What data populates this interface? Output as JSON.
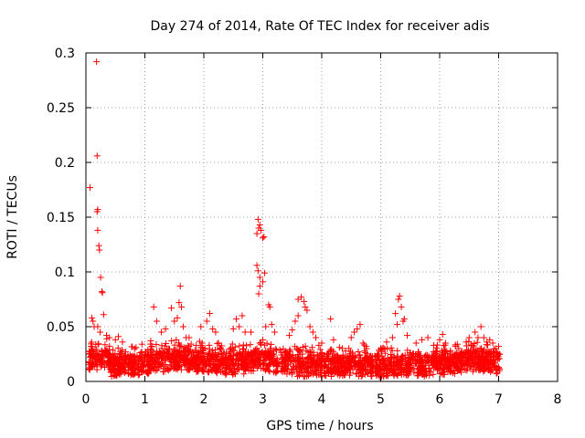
{
  "chart_data": {
    "type": "scatter",
    "title": "Day 274 of 2014, Rate Of TEC Index for receiver adis",
    "xlabel": "GPS time / hours",
    "ylabel": "ROTI / TECUs",
    "xlim": [
      0,
      8
    ],
    "ylim": [
      0,
      0.3
    ],
    "x_ticks": [
      0,
      1,
      2,
      3,
      4,
      5,
      6,
      7,
      8
    ],
    "y_ticks": [
      0,
      0.05,
      0.1,
      0.15,
      0.2,
      0.25,
      0.3
    ],
    "grid": true,
    "marker": "+",
    "color": "#ff0000",
    "series": [
      {
        "name": "ROTI",
        "points": [
          [
            0.07,
            0.177
          ],
          [
            0.18,
            0.292
          ],
          [
            0.19,
            0.206
          ],
          [
            0.2,
            0.157
          ],
          [
            0.19,
            0.155
          ],
          [
            0.2,
            0.138
          ],
          [
            0.22,
            0.124
          ],
          [
            0.23,
            0.12
          ],
          [
            0.25,
            0.095
          ],
          [
            0.27,
            0.082
          ],
          [
            0.28,
            0.081
          ],
          [
            0.3,
            0.061
          ],
          [
            0.1,
            0.058
          ],
          [
            0.12,
            0.055
          ],
          [
            0.14,
            0.05
          ],
          [
            0.2,
            0.05
          ],
          [
            0.24,
            0.045
          ],
          [
            0.35,
            0.042
          ],
          [
            0.4,
            0.04
          ],
          [
            0.5,
            0.038
          ],
          [
            0.55,
            0.041
          ],
          [
            0.62,
            0.036
          ],
          [
            0.85,
            0.031
          ],
          [
            0.95,
            0.034
          ],
          [
            1.1,
            0.037
          ],
          [
            1.15,
            0.068
          ],
          [
            1.2,
            0.055
          ],
          [
            1.28,
            0.045
          ],
          [
            1.35,
            0.048
          ],
          [
            1.45,
            0.067
          ],
          [
            1.5,
            0.055
          ],
          [
            1.55,
            0.058
          ],
          [
            1.58,
            0.072
          ],
          [
            1.6,
            0.087
          ],
          [
            1.62,
            0.068
          ],
          [
            1.65,
            0.05
          ],
          [
            1.7,
            0.04
          ],
          [
            1.75,
            0.04
          ],
          [
            1.95,
            0.05
          ],
          [
            2.05,
            0.055
          ],
          [
            2.1,
            0.062
          ],
          [
            2.15,
            0.048
          ],
          [
            2.2,
            0.045
          ],
          [
            2.25,
            0.035
          ],
          [
            2.5,
            0.048
          ],
          [
            2.55,
            0.057
          ],
          [
            2.6,
            0.05
          ],
          [
            2.65,
            0.06
          ],
          [
            2.7,
            0.045
          ],
          [
            2.8,
            0.045
          ],
          [
            2.9,
            0.135
          ],
          [
            2.92,
            0.148
          ],
          [
            2.93,
            0.14
          ],
          [
            2.95,
            0.143
          ],
          [
            2.97,
            0.138
          ],
          [
            3.0,
            0.131
          ],
          [
            3.02,
            0.132
          ],
          [
            2.9,
            0.106
          ],
          [
            2.92,
            0.101
          ],
          [
            2.95,
            0.095
          ],
          [
            3.0,
            0.091
          ],
          [
            3.03,
            0.099
          ],
          [
            2.95,
            0.087
          ],
          [
            2.93,
            0.08
          ],
          [
            3.1,
            0.07
          ],
          [
            3.12,
            0.068
          ],
          [
            3.05,
            0.05
          ],
          [
            3.15,
            0.052
          ],
          [
            3.2,
            0.045
          ],
          [
            3.0,
            0.038
          ],
          [
            2.95,
            0.035
          ],
          [
            2.9,
            0.03
          ],
          [
            3.6,
            0.075
          ],
          [
            3.65,
            0.077
          ],
          [
            3.7,
            0.073
          ],
          [
            3.72,
            0.068
          ],
          [
            3.75,
            0.065
          ],
          [
            3.6,
            0.06
          ],
          [
            3.55,
            0.055
          ],
          [
            3.5,
            0.047
          ],
          [
            3.45,
            0.042
          ],
          [
            3.8,
            0.05
          ],
          [
            3.85,
            0.045
          ],
          [
            3.9,
            0.04
          ],
          [
            3.95,
            0.033
          ],
          [
            4.0,
            0.035
          ],
          [
            4.15,
            0.057
          ],
          [
            4.2,
            0.038
          ],
          [
            4.5,
            0.04
          ],
          [
            4.55,
            0.045
          ],
          [
            4.6,
            0.048
          ],
          [
            4.65,
            0.052
          ],
          [
            4.7,
            0.035
          ],
          [
            4.75,
            0.032
          ],
          [
            5.0,
            0.03
          ],
          [
            5.1,
            0.036
          ],
          [
            5.2,
            0.04
          ],
          [
            5.25,
            0.062
          ],
          [
            5.3,
            0.075
          ],
          [
            5.32,
            0.078
          ],
          [
            5.35,
            0.068
          ],
          [
            5.38,
            0.055
          ],
          [
            5.4,
            0.057
          ],
          [
            5.28,
            0.052
          ],
          [
            5.45,
            0.042
          ],
          [
            5.6,
            0.035
          ],
          [
            5.7,
            0.038
          ],
          [
            5.8,
            0.04
          ],
          [
            5.9,
            0.033
          ],
          [
            6.0,
            0.038
          ],
          [
            6.05,
            0.043
          ],
          [
            6.1,
            0.035
          ],
          [
            6.3,
            0.034
          ],
          [
            6.45,
            0.036
          ],
          [
            6.5,
            0.04
          ],
          [
            6.6,
            0.045
          ],
          [
            6.65,
            0.04
          ],
          [
            6.7,
            0.05
          ],
          [
            6.75,
            0.04
          ],
          [
            6.8,
            0.036
          ],
          [
            6.85,
            0.038
          ],
          [
            6.9,
            0.035
          ],
          [
            6.95,
            0.03
          ],
          [
            7.0,
            0.032
          ],
          [
            7.02,
            0.025
          ]
        ]
      }
    ]
  }
}
